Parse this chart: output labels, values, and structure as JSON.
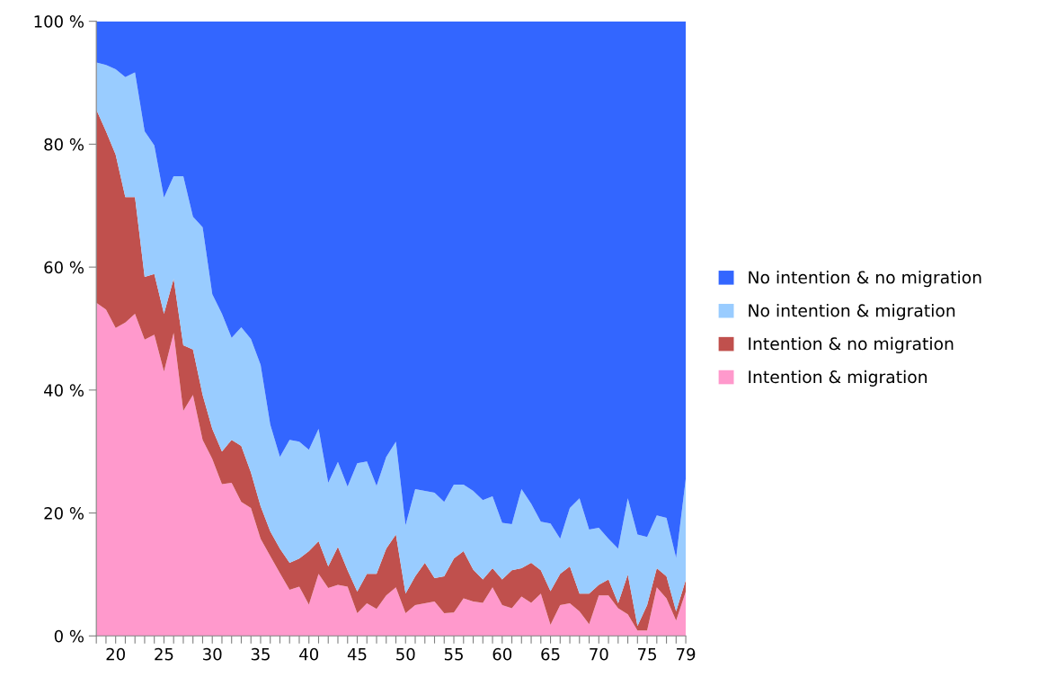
{
  "chart_data": {
    "type": "area",
    "stacked": true,
    "categories": [
      null,
      null,
      "20",
      null,
      null,
      null,
      null,
      "25",
      null,
      null,
      null,
      null,
      "30",
      null,
      null,
      null,
      null,
      "35",
      null,
      null,
      null,
      null,
      "40",
      null,
      null,
      null,
      null,
      "45",
      null,
      null,
      null,
      null,
      "50",
      null,
      null,
      null,
      null,
      "55",
      null,
      null,
      null,
      null,
      "60",
      null,
      null,
      null,
      null,
      "65",
      null,
      null,
      null,
      null,
      "70",
      null,
      null,
      null,
      null,
      "75",
      null,
      null,
      null,
      "79"
    ],
    "series": [
      {
        "name": "Intention & migration",
        "color": "#ff99cc",
        "values": [
          54.2,
          53.1,
          50.1,
          51.0,
          52.4,
          48.2,
          49.0,
          43.0,
          49.3,
          36.6,
          39.2,
          31.9,
          28.8,
          24.7,
          24.9,
          21.8,
          20.8,
          15.8,
          13.0,
          10.2,
          7.5,
          8.0,
          5.1,
          10.1,
          7.8,
          8.3,
          8.0,
          3.7,
          5.3,
          4.4,
          6.6,
          7.9,
          3.7,
          5.0,
          5.3,
          5.6,
          3.7,
          3.8,
          6.1,
          5.6,
          5.4,
          7.9,
          5.0,
          4.5,
          6.4,
          5.4,
          6.9,
          1.8,
          5.0,
          5.3,
          4.0,
          1.9,
          6.6,
          6.6,
          4.5,
          3.5,
          0.9,
          0.9,
          7.9,
          6.1,
          2.5,
          7.2
        ]
      },
      {
        "name": "Intention & no migration",
        "color": "#c0504d",
        "values": [
          31.4,
          29.0,
          28.2,
          20.4,
          19.0,
          10.2,
          9.9,
          9.4,
          8.8,
          10.7,
          7.4,
          7.3,
          4.9,
          5.3,
          7.0,
          9.1,
          5.8,
          5.3,
          4.0,
          4.0,
          4.4,
          4.6,
          8.7,
          5.3,
          3.5,
          6.2,
          2.7,
          3.5,
          4.8,
          5.7,
          7.6,
          8.6,
          3.2,
          4.7,
          6.6,
          3.8,
          6.0,
          8.8,
          7.7,
          5.2,
          3.8,
          3.1,
          4.2,
          6.2,
          4.6,
          6.5,
          3.8,
          5.5,
          5.1,
          6.0,
          2.9,
          5.0,
          1.7,
          2.6,
          0.8,
          6.5,
          0.7,
          4.1,
          3.1,
          3.6,
          1.5,
          1.9
        ]
      },
      {
        "name": "No intention & migration",
        "color": "#99ccff",
        "values": [
          7.7,
          10.8,
          13.9,
          19.5,
          20.3,
          23.7,
          20.9,
          18.9,
          16.7,
          27.5,
          21.6,
          27.3,
          21.9,
          22.4,
          16.6,
          19.3,
          21.7,
          23.0,
          17.4,
          14.9,
          20.0,
          19.0,
          16.5,
          18.3,
          13.6,
          13.8,
          13.6,
          20.9,
          18.3,
          14.3,
          14.9,
          15.1,
          11.1,
          14.2,
          11.7,
          13.9,
          12.1,
          12.0,
          10.8,
          12.8,
          12.9,
          11.7,
          9.2,
          7.5,
          12.9,
          9.6,
          7.9,
          11.0,
          5.7,
          9.5,
          15.5,
          10.4,
          9.3,
          6.6,
          8.9,
          12.4,
          14.9,
          11.1,
          8.6,
          9.5,
          8.7,
          16.5
        ]
      },
      {
        "name": "No intention & no migration",
        "color": "#3366ff",
        "values": [
          6.7,
          7.1,
          7.8,
          9.1,
          8.3,
          17.9,
          20.2,
          28.7,
          25.2,
          25.2,
          31.8,
          33.5,
          44.4,
          47.6,
          51.5,
          49.8,
          51.7,
          55.9,
          65.6,
          70.9,
          68.1,
          68.4,
          69.7,
          66.3,
          75.1,
          71.7,
          75.7,
          71.9,
          71.6,
          75.6,
          70.9,
          68.4,
          82.0,
          76.1,
          76.4,
          76.7,
          78.2,
          75.4,
          75.4,
          76.4,
          77.9,
          77.3,
          81.6,
          81.8,
          76.1,
          78.5,
          81.4,
          81.7,
          84.2,
          79.2,
          77.6,
          82.7,
          82.4,
          84.2,
          85.8,
          77.6,
          83.5,
          83.9,
          80.4,
          80.8,
          87.3,
          74.4
        ]
      }
    ],
    "ylim": [
      0,
      100
    ],
    "yticks": [
      {
        "value": 0,
        "label": "0 %"
      },
      {
        "value": 20,
        "label": "20 %"
      },
      {
        "value": 40,
        "label": "40 %"
      },
      {
        "value": 60,
        "label": "60 %"
      },
      {
        "value": 80,
        "label": "80 %"
      },
      {
        "value": 100,
        "label": "100 %"
      }
    ],
    "grid": false,
    "legend": "right"
  }
}
